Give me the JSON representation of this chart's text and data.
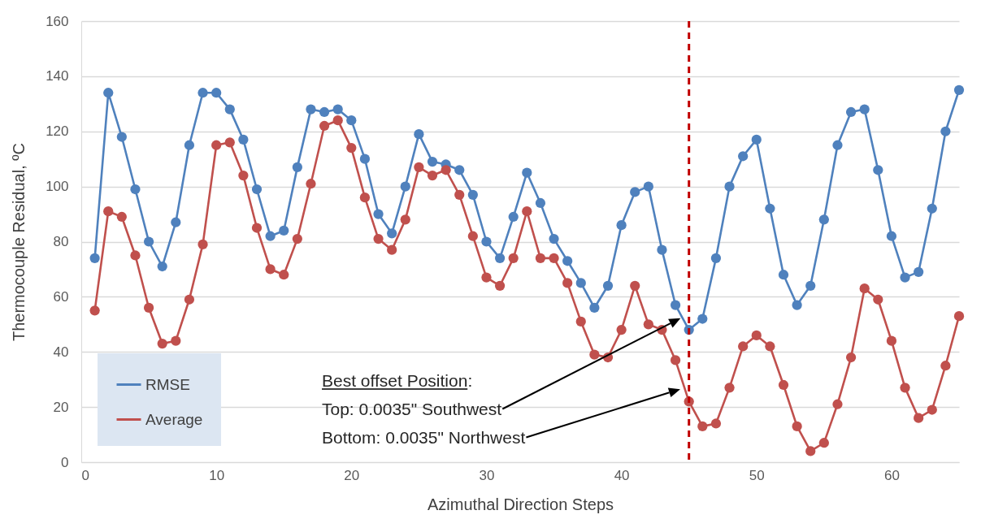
{
  "chart_data": {
    "type": "line",
    "xlabel": "Azimuthal Direction Steps",
    "ylabel": "Thermocouple Residual, ºC",
    "x": [
      1,
      2,
      3,
      4,
      5,
      6,
      7,
      8,
      9,
      10,
      11,
      12,
      13,
      14,
      15,
      16,
      17,
      18,
      19,
      20,
      21,
      22,
      23,
      24,
      25,
      26,
      27,
      28,
      29,
      30,
      31,
      32,
      33,
      34,
      35,
      36,
      37,
      38,
      39,
      40,
      41,
      42,
      43,
      44,
      45,
      46,
      47,
      48,
      49,
      50,
      51,
      52,
      53,
      54,
      55,
      56,
      57,
      58,
      59,
      60,
      61,
      62,
      63,
      64,
      65
    ],
    "series": [
      {
        "name": "RMSE",
        "color": "#4f81bd",
        "values": [
          74,
          134,
          118,
          99,
          80,
          71,
          87,
          115,
          134,
          134,
          128,
          117,
          99,
          82,
          84,
          107,
          128,
          127,
          128,
          124,
          110,
          90,
          83,
          100,
          119,
          109,
          108,
          106,
          97,
          80,
          74,
          89,
          105,
          94,
          81,
          73,
          65,
          56,
          64,
          86,
          98,
          100,
          77,
          57,
          48,
          52,
          74,
          100,
          111,
          117,
          92,
          68,
          57,
          64,
          88,
          115,
          127,
          128,
          106,
          82,
          67,
          69,
          92,
          120,
          135
        ]
      },
      {
        "name": "Average",
        "color": "#c0504d",
        "values": [
          55,
          91,
          89,
          75,
          56,
          43,
          44,
          59,
          79,
          115,
          116,
          104,
          85,
          70,
          68,
          81,
          101,
          122,
          124,
          114,
          96,
          81,
          77,
          88,
          107,
          104,
          106,
          97,
          82,
          67,
          64,
          74,
          91,
          74,
          74,
          65,
          51,
          39,
          38,
          48,
          64,
          50,
          48,
          37,
          22,
          13,
          14,
          27,
          42,
          46,
          42,
          28,
          13,
          4,
          7,
          21,
          38,
          63,
          59,
          44,
          27,
          16,
          19,
          35,
          53
        ]
      }
    ],
    "xlim": [
      0,
      65
    ],
    "xticks": [
      0,
      10,
      20,
      30,
      40,
      50,
      60
    ],
    "ylim": [
      0,
      160
    ],
    "yticks": [
      0,
      20,
      40,
      60,
      80,
      100,
      120,
      140,
      160
    ],
    "grid": "y",
    "legend": "bottom left",
    "marker": "circle",
    "line_style": "solid",
    "ref_lines": [
      {
        "axis": "x",
        "value": 45,
        "color": "#c00000",
        "line_style": "dashed"
      }
    ],
    "annotations": [
      "Best offset Position:",
      "Top: 0.0035\" Southwest",
      "Bottom: 0.0035\" Northwest"
    ]
  }
}
